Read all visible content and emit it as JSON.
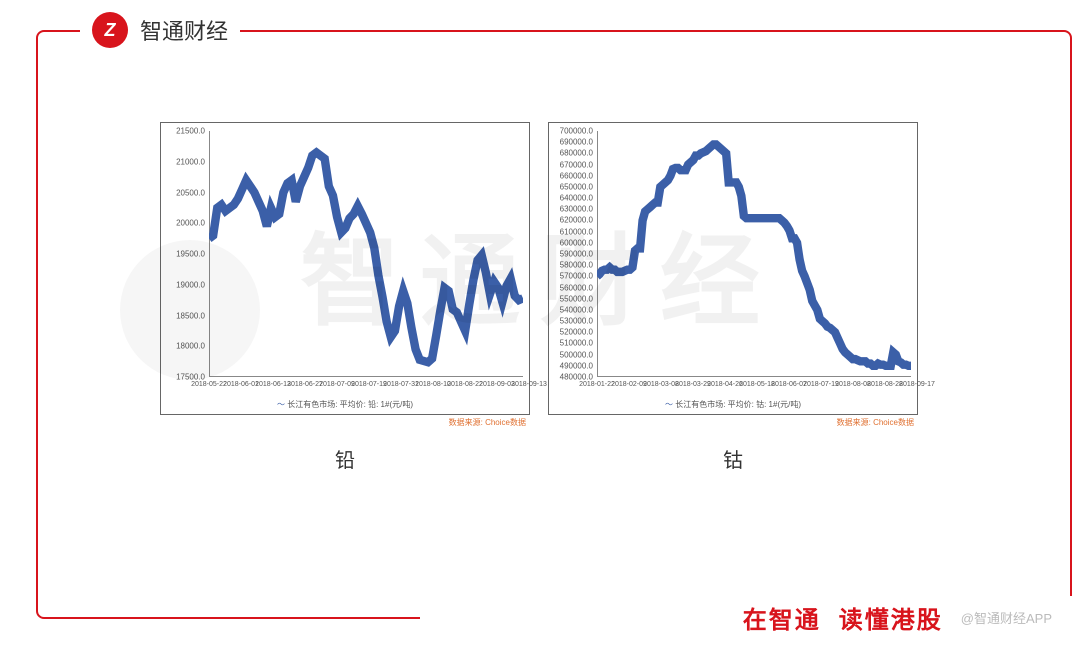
{
  "brand": {
    "logo_letter": "Z",
    "name": "智通财经"
  },
  "footer": {
    "tagline1": "在智通",
    "tagline2": "读懂港股",
    "watermark": "@智通财经APP"
  },
  "watermark_text": "智通财经",
  "colors": {
    "accent": "#d8141c",
    "line": "#3b5fa8",
    "axis": "#888888",
    "tick_text": "#555555",
    "source_text": "#e07030",
    "background": "#ffffff"
  },
  "charts": [
    {
      "title": "铅",
      "type": "line",
      "legend_prefix": "～",
      "legend": "长江有色市场: 平均价: 铅: 1#(元/吨)",
      "source": "数据来源: Choice数据",
      "y_min": 17500,
      "y_max": 21500,
      "y_step": 500,
      "y_labels": [
        "17500.0",
        "18000.0",
        "18500.0",
        "19000.0",
        "19500.0",
        "20000.0",
        "20500.0",
        "21000.0",
        "21500.0"
      ],
      "x_labels": [
        "2018-05-22",
        "2018-06-01",
        "2018-06-13",
        "2018-06-27",
        "2018-07-09",
        "2018-07-19",
        "2018-07-31",
        "2018-08-10",
        "2018-08-22",
        "2018-09-03",
        "2018-09-13"
      ],
      "values": [
        19750,
        19800,
        20250,
        20300,
        20200,
        20250,
        20300,
        20400,
        20550,
        20700,
        20600,
        20500,
        20350,
        20200,
        19950,
        20250,
        20100,
        20150,
        20500,
        20650,
        20700,
        20350,
        20600,
        20750,
        20900,
        21100,
        21150,
        21100,
        21050,
        20600,
        20450,
        20100,
        19850,
        19920,
        20080,
        20150,
        20280,
        20150,
        20000,
        19850,
        19600,
        19150,
        18800,
        18400,
        18150,
        18250,
        18650,
        18900,
        18700,
        18300,
        17950,
        17780,
        17760,
        17740,
        17800,
        18180,
        18580,
        18950,
        18900,
        18600,
        18550,
        18400,
        18250,
        18680,
        19080,
        19400,
        19480,
        19200,
        18850,
        19050,
        18950,
        18720,
        18980,
        19100,
        18820,
        18750,
        18780
      ],
      "line_width": 1.4
    },
    {
      "title": "钴",
      "type": "line",
      "legend_prefix": "～",
      "legend": "长江有色市场: 平均价: 钴: 1#(元/吨)",
      "source": "数据来源: Choice数据",
      "y_min": 480000,
      "y_max": 700000,
      "y_step": 10000,
      "y_labels": [
        "480000.0",
        "490000.0",
        "500000.0",
        "510000.0",
        "520000.0",
        "530000.0",
        "540000.0",
        "550000.0",
        "560000.0",
        "570000.0",
        "580000.0",
        "590000.0",
        "600000.0",
        "610000.0",
        "620000.0",
        "630000.0",
        "640000.0",
        "650000.0",
        "660000.0",
        "670000.0",
        "680000.0",
        "690000.0",
        "700000.0"
      ],
      "x_labels": [
        "2018-01-22",
        "2018-02-09",
        "2018-03-08",
        "2018-03-29",
        "2018-04-26",
        "2018-05-18",
        "2018-06-07",
        "2018-07-19",
        "2018-08-08",
        "2018-08-28",
        "2018-09-17"
      ],
      "values": [
        570000,
        572000,
        575000,
        576000,
        576000,
        578000,
        576000,
        576000,
        574000,
        574000,
        574000,
        575000,
        576000,
        576000,
        578000,
        593000,
        595000,
        595000,
        620000,
        628000,
        630000,
        632000,
        634000,
        636000,
        636000,
        650000,
        652000,
        654000,
        656000,
        660000,
        666000,
        667000,
        667000,
        665000,
        665000,
        665000,
        670000,
        672000,
        674000,
        678000,
        678000,
        680000,
        681000,
        682000,
        684000,
        686000,
        688000,
        688000,
        686000,
        684000,
        682000,
        680000,
        654000,
        654000,
        654000,
        654000,
        650000,
        642000,
        624000,
        622000,
        622000,
        622000,
        622000,
        622000,
        622000,
        622000,
        622000,
        622000,
        622000,
        622000,
        622000,
        622000,
        622000,
        620000,
        618000,
        615000,
        611000,
        604000,
        604000,
        600000,
        585000,
        575000,
        570000,
        564000,
        558000,
        548000,
        544000,
        540000,
        532000,
        530000,
        528000,
        525000,
        524000,
        522000,
        520000,
        515000,
        510000,
        505000,
        502000,
        500000,
        498000,
        496000,
        496000,
        495000,
        494000,
        494000,
        494000,
        492000,
        492000,
        490000,
        490000,
        492000,
        491000,
        491000,
        490000,
        490000,
        490000,
        502000,
        500000,
        494000,
        493000,
        491000,
        491000,
        490000,
        490000
      ],
      "line_width": 1.4
    }
  ]
}
